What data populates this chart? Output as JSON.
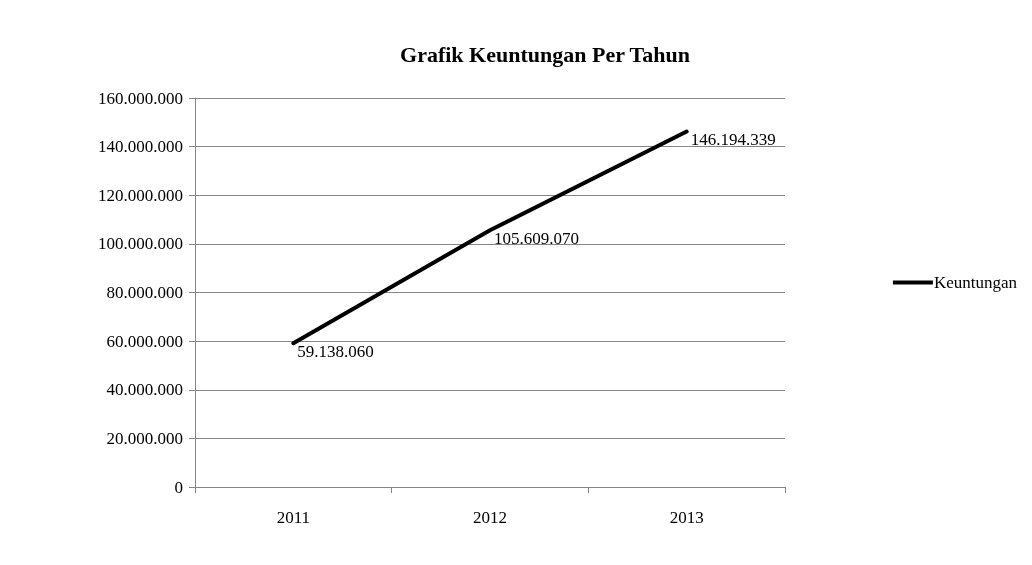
{
  "chart_data": {
    "type": "line",
    "title": "Grafik Keuntungan Per Tahun",
    "categories": [
      "2011",
      "2012",
      "2013"
    ],
    "series": [
      {
        "name": "Keuntungan",
        "color": "#000000",
        "values": [
          59138060,
          105609070,
          146194339
        ],
        "value_labels": [
          "59.138.060",
          "105.609.070",
          "146.194.339"
        ]
      }
    ],
    "ylim": [
      0,
      160000000
    ],
    "yticks": [
      0,
      {
        "value": 20000000,
        "label": "20.000.000"
      },
      {
        "value": 40000000,
        "label": "40.000.000"
      },
      {
        "value": 60000000,
        "label": "60.000.000"
      },
      {
        "value": 80000000,
        "label": "80.000.000"
      },
      {
        "value": 100000000,
        "label": "100.000.000"
      },
      {
        "value": 120000000,
        "label": "120.000.000"
      },
      {
        "value": 140000000,
        "label": "140.000.000"
      },
      {
        "value": 160000000,
        "label": "160.000.000"
      }
    ],
    "grid": "y",
    "legend": "right",
    "marker": "none",
    "line_style": "solid"
  }
}
